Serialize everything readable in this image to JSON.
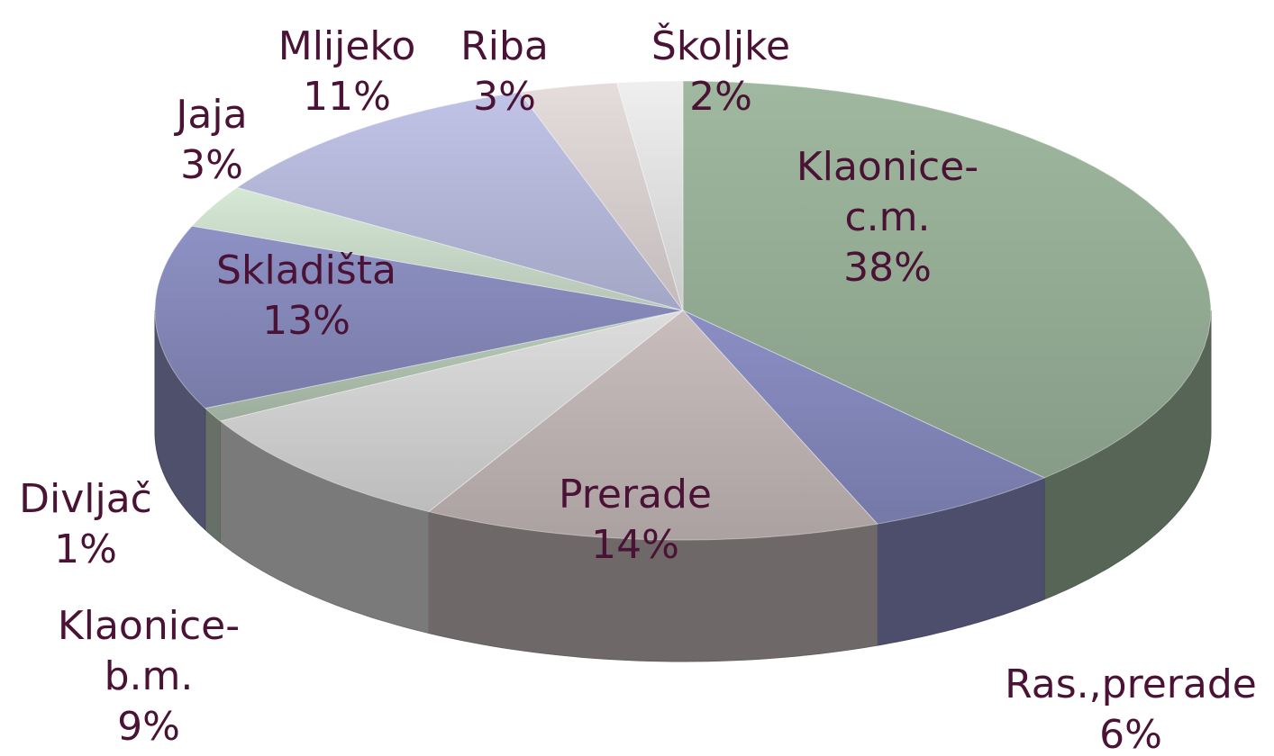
{
  "chart_data": {
    "type": "pie3d",
    "categories": [
      "Klaonice-c.m.",
      "Ras.,prerade",
      "Prerade",
      "Klaonice-b.m.",
      "Divljač",
      "Skladišta",
      "Jaja",
      "Mlijeko",
      "Riba",
      "Školjke"
    ],
    "values": [
      38,
      6,
      14,
      9,
      1,
      13,
      3,
      11,
      3,
      2
    ],
    "value_labels": [
      "38%",
      "6%",
      "14%",
      "9%",
      "1%",
      "13%",
      "3%",
      "11%",
      "3%",
      "2%"
    ],
    "colors": [
      "#9fb89f",
      "#8a8ec4",
      "#c9bdbd",
      "#dddddd",
      "#b9ccb9",
      "#8d91c4",
      "#d6e8d6",
      "#c0c3e6",
      "#e5dcdc",
      "#efefef"
    ]
  }
}
